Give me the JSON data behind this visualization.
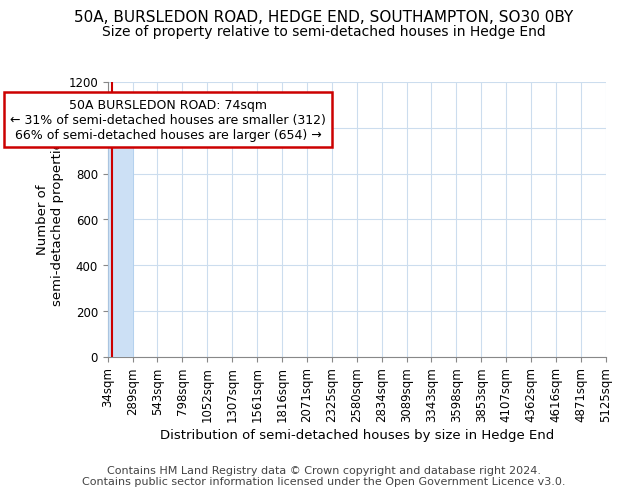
{
  "title1": "50A, BURSLEDON ROAD, HEDGE END, SOUTHAMPTON, SO30 0BY",
  "title2": "Size of property relative to semi-detached houses in Hedge End",
  "xlabel": "Distribution of semi-detached houses by size in Hedge End",
  "ylabel": "Number of\nsemi-detached properties",
  "annotation_line1": "50A BURSLEDON ROAD: 74sqm",
  "annotation_line2": "← 31% of semi-detached houses are smaller (312)",
  "annotation_line3": "66% of semi-detached houses are larger (654) →",
  "footer1": "Contains HM Land Registry data © Crown copyright and database right 2024.",
  "footer2": "Contains public sector information licensed under the Open Government Licence v3.0.",
  "bar_edges": [
    34,
    289,
    543,
    798,
    1052,
    1307,
    1561,
    1816,
    2071,
    2325,
    2580,
    2834,
    3089,
    3343,
    3598,
    3853,
    4107,
    4362,
    4616,
    4871,
    5125
  ],
  "bar_heights": [
    1000,
    0,
    0,
    0,
    0,
    0,
    0,
    0,
    0,
    0,
    0,
    0,
    0,
    0,
    0,
    0,
    0,
    0,
    0,
    0
  ],
  "bar_color": "#cce0f5",
  "bar_edge_color": "#aaccee",
  "property_size": 74,
  "marker_color": "#cc0000",
  "annotation_box_color": "#cc0000",
  "ylim": [
    0,
    1200
  ],
  "yticks": [
    0,
    200,
    400,
    600,
    800,
    1000,
    1200
  ],
  "grid_color": "#ccddee",
  "title_fontsize": 11,
  "subtitle_fontsize": 10,
  "axis_label_fontsize": 9.5,
  "tick_fontsize": 8.5,
  "footer_fontsize": 8,
  "annot_fontsize": 9
}
